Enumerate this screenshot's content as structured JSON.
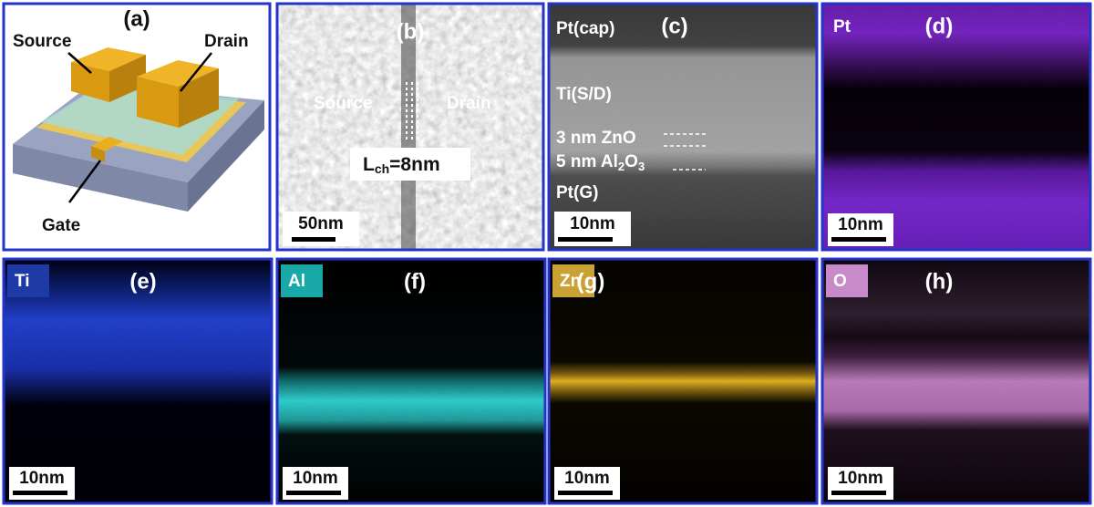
{
  "panels": [
    {
      "label": "(a)",
      "source": "Source",
      "drain": "Drain",
      "gate": "Gate"
    },
    {
      "label": "(b)",
      "source": "Source",
      "drain": "Drain",
      "channel_length": {
        "symbol": "L",
        "subscript": "ch",
        "value": "=8nm"
      },
      "scale_bar": "50nm"
    },
    {
      "label": "(c)",
      "layers": [
        "Pt(cap)",
        "Ti(S/D)",
        "3 nm ZnO"
      ],
      "oxide": {
        "text": "5 nm Al",
        "sub1": "2",
        "mid": "O",
        "sub2": "3"
      },
      "bottom_layer": "Pt(G)",
      "scale_bar": "10nm"
    },
    {
      "label": "(d)",
      "element": "Pt",
      "scale_bar": "10nm"
    },
    {
      "label": "(e)",
      "element": "Ti",
      "scale_bar": "10nm"
    },
    {
      "label": "(f)",
      "element": "Al",
      "scale_bar": "10nm"
    },
    {
      "label": "(g)",
      "element": "Zn",
      "scale_bar": "10nm"
    },
    {
      "label": "(h)",
      "element": "O",
      "scale_bar": "10nm"
    }
  ]
}
